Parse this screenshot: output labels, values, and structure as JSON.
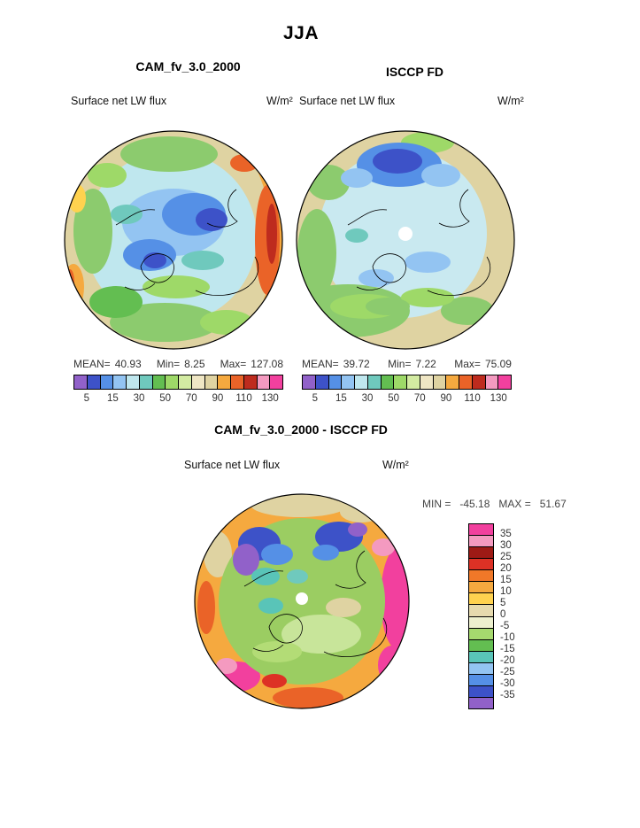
{
  "page": {
    "title": "JJA"
  },
  "top_row": {
    "cam_header": "CAM_fv_3.0_2000",
    "isccp_header": "ISCCP FD"
  },
  "cam": {
    "field_label": "Surface net LW flux",
    "units": "W/m²",
    "mean_label": "MEAN=",
    "mean": "40.93",
    "min_label": "Min=",
    "min": "8.25",
    "max_label": "Max=",
    "max": "127.08"
  },
  "isccp": {
    "field_label": "Surface net LW flux",
    "units": "W/m²",
    "mean_label": "MEAN=",
    "mean": "39.72",
    "min_label": "Min=",
    "min": "7.22",
    "max_label": "Max=",
    "max": "75.09"
  },
  "shared_colorbar": {
    "ticks": [
      "5",
      "15",
      "30",
      "50",
      "70",
      "90",
      "110",
      "130"
    ],
    "colors": [
      "#9161C9",
      "#3D52C8",
      "#5590E6",
      "#93C4F2",
      "#BFE7EE",
      "#6FC9BD",
      "#63BE51",
      "#9ED968",
      "#D3EBA2",
      "#EFE6C4",
      "#DFD3A2",
      "#F5A93F",
      "#EA6328",
      "#BE2B1E",
      "#F49AC0",
      "#F2409E"
    ]
  },
  "diff": {
    "header": "CAM_fv_3.0_2000 - ISCCP FD",
    "field_label": "Surface net LW flux",
    "units": "W/m²",
    "min_label": "MIN =",
    "min": "-45.18",
    "max_label": "MAX =",
    "max": "51.67",
    "colorbar": {
      "labels": [
        "35",
        "30",
        "25",
        "20",
        "15",
        "10",
        "5",
        "0",
        "-5",
        "-10",
        "-15",
        "-20",
        "-25",
        "-30",
        "-35"
      ],
      "colors": [
        "#F2409E",
        "#F49AC0",
        "#9E1A15",
        "#DD3125",
        "#F07828",
        "#F5A93F",
        "#FFD24F",
        "#E6DAAE",
        "#EDF0CE",
        "#A6D96E",
        "#63BE51",
        "#59C4B8",
        "#93C4F2",
        "#5590E6",
        "#3D52C8",
        "#9161C9"
      ]
    }
  },
  "chart_data": [
    {
      "type": "heatmap",
      "title": "CAM_fv_3.0_2000",
      "season": "JJA",
      "variable": "Surface net LW flux",
      "units": "W/m²",
      "stats": {
        "mean": 40.93,
        "min": 8.25,
        "max": 127.08
      },
      "colorbar_tick_labels": [
        5,
        15,
        30,
        50,
        70,
        90,
        110,
        130
      ],
      "legend_position": "below",
      "projection": "north-polar circular map"
    },
    {
      "type": "heatmap",
      "title": "ISCCP FD",
      "season": "JJA",
      "variable": "Surface net LW flux",
      "units": "W/m²",
      "stats": {
        "mean": 39.72,
        "min": 7.22,
        "max": 75.09
      },
      "colorbar_tick_labels": [
        5,
        15,
        30,
        50,
        70,
        90,
        110,
        130
      ],
      "legend_position": "below",
      "projection": "north-polar circular map"
    },
    {
      "type": "heatmap",
      "title": "CAM_fv_3.0_2000 - ISCCP FD",
      "season": "JJA",
      "variable": "Surface net LW flux",
      "units": "W/m²",
      "stats": {
        "min": -45.18,
        "max": 51.67
      },
      "colorbar_tick_labels": [
        35,
        30,
        25,
        20,
        15,
        10,
        5,
        0,
        -5,
        -10,
        -15,
        -20,
        -25,
        -30,
        -35
      ],
      "legend_position": "right",
      "projection": "north-polar circular map"
    }
  ]
}
